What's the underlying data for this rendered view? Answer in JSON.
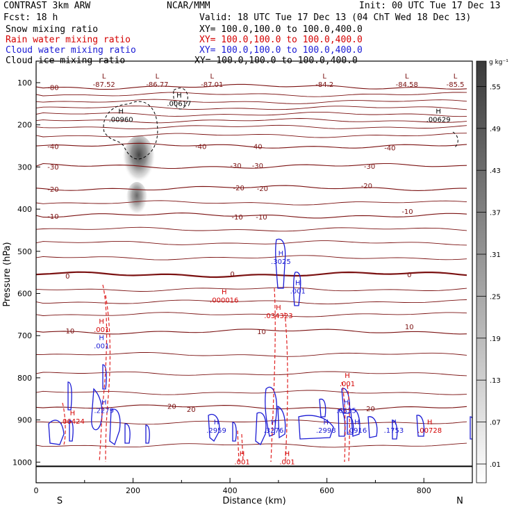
{
  "header": {
    "left_line1": "CONTRAST   3km ARW",
    "center_line1": "NCAR/MMM",
    "right_line1": "Init: 00 UTC Tue 17 Dec 13",
    "left_line2": "Fcst:    18 h",
    "right_line2": "Valid: 18 UTC Tue 17 Dec 13 (04 ChT Wed 18 Dec 13)",
    "fields": [
      {
        "label": "Snow mixing ratio",
        "xy": "XY= 100.0,100.0 to 100.0,400.0",
        "color": "#000000"
      },
      {
        "label": "Rain water mixing ratio",
        "xy": "XY= 100.0,100.0 to 100.0,400.0",
        "color": "#d40000"
      },
      {
        "label": "Cloud water mixing ratio",
        "xy": "XY= 100.0,100.0 to 100.0,400.0",
        "color": "#1a1ad4"
      },
      {
        "label": "Cloud ice mixing ratio",
        "xy": "XY= 100.0,100.0 to 100.0,400.0",
        "color": "#000000"
      }
    ]
  },
  "colorbar": {
    "unit": "g kg⁻¹",
    "levels": [
      ".01",
      ".07",
      ".13",
      ".19",
      ".25",
      ".31",
      ".37",
      ".43",
      ".49",
      ".55"
    ]
  },
  "chart_data": {
    "type": "contour cross-section",
    "xlabel": "Distance (km)",
    "ylabel": "Pressure (hPa)",
    "xlim": [
      0,
      900
    ],
    "ylim": [
      1040,
      50
    ],
    "x_ticks": [
      "0",
      "200",
      "400",
      "600",
      "800"
    ],
    "x_tick_values": [
      0,
      200,
      400,
      600,
      800
    ],
    "y_ticks": [
      "100",
      "200",
      "300",
      "400",
      "500",
      "600",
      "700",
      "800",
      "900",
      "1000"
    ],
    "y_tick_values": [
      100,
      200,
      300,
      400,
      500,
      600,
      700,
      800,
      900,
      1000
    ],
    "left_end": "S",
    "right_end": "N",
    "temperature_isotherms": [
      {
        "label": "-80",
        "p": 110
      },
      {
        "label": "-40",
        "p": 250
      },
      {
        "label": "-30",
        "p": 298
      },
      {
        "label": "-20",
        "p": 350
      },
      {
        "label": "-10",
        "p": 415
      },
      {
        "label": "0",
        "p": 555
      },
      {
        "label": "10",
        "p": 690
      },
      {
        "label": "20",
        "p": 870
      }
    ],
    "isotherm_labels": [
      {
        "text": "-80",
        "x": 35,
        "p": 111
      },
      {
        "text": "-40",
        "x": 35,
        "p": 251
      },
      {
        "text": "-40",
        "x": 340,
        "p": 251
      },
      {
        "text": "-40",
        "x": 455,
        "p": 251
      },
      {
        "text": "-40",
        "x": 730,
        "p": 254
      },
      {
        "text": "-30",
        "x": 35,
        "p": 299
      },
      {
        "text": "-30",
        "x": 412,
        "p": 296
      },
      {
        "text": "-30",
        "x": 457,
        "p": 296
      },
      {
        "text": "-30",
        "x": 688,
        "p": 298
      },
      {
        "text": "-20",
        "x": 35,
        "p": 352
      },
      {
        "text": "-20",
        "x": 418,
        "p": 349
      },
      {
        "text": "-20",
        "x": 467,
        "p": 350
      },
      {
        "text": "-20",
        "x": 682,
        "p": 344
      },
      {
        "text": "-10",
        "x": 35,
        "p": 416
      },
      {
        "text": "-10",
        "x": 415,
        "p": 418
      },
      {
        "text": "-10",
        "x": 465,
        "p": 418
      },
      {
        "text": "-10",
        "x": 766,
        "p": 405
      },
      {
        "text": "0",
        "x": 65,
        "p": 558
      },
      {
        "text": "0",
        "x": 405,
        "p": 553
      },
      {
        "text": "0",
        "x": 770,
        "p": 555
      },
      {
        "text": "10",
        "x": 70,
        "p": 688
      },
      {
        "text": "10",
        "x": 465,
        "p": 690
      },
      {
        "text": "10",
        "x": 770,
        "p": 678
      },
      {
        "text": "20",
        "x": 280,
        "p": 867
      },
      {
        "text": "20",
        "x": 320,
        "p": 874
      },
      {
        "text": "20",
        "x": 690,
        "p": 873
      }
    ],
    "low_labels": [
      {
        "text": "-87.52",
        "x": 140,
        "p": 100
      },
      {
        "text": "-86.77",
        "x": 250,
        "p": 100
      },
      {
        "text": "-87.01",
        "x": 363,
        "p": 100
      },
      {
        "text": "-84.2",
        "x": 595,
        "p": 100
      },
      {
        "text": "-84.58",
        "x": 765,
        "p": 100
      },
      {
        "text": "-85.5",
        "x": 865,
        "p": 100
      }
    ],
    "maxima_labels": [
      {
        "text": ".00960",
        "x": 175,
        "p": 190,
        "color": "#000000"
      },
      {
        "text": ".00617",
        "x": 295,
        "p": 152,
        "color": "#000000"
      },
      {
        "text": ".00629",
        "x": 830,
        "p": 190,
        "color": "#000000"
      },
      {
        "text": ".3025",
        "x": 505,
        "p": 527,
        "color": "#1a1ad4"
      },
      {
        "text": ".001",
        "x": 540,
        "p": 597,
        "color": "#1a1ad4"
      },
      {
        "text": ".000016",
        "x": 388,
        "p": 618,
        "color": "#d40000"
      },
      {
        "text": ".034323",
        "x": 500,
        "p": 655,
        "color": "#d40000"
      },
      {
        "text": ".001",
        "x": 135,
        "p": 688,
        "color": "#d40000"
      },
      {
        "text": ".001",
        "x": 135,
        "p": 727,
        "color": "#1a1ad4"
      },
      {
        "text": ".2279",
        "x": 140,
        "p": 880,
        "color": "#1a1ad4"
      },
      {
        "text": ".06424",
        "x": 75,
        "p": 906,
        "color": "#d40000"
      },
      {
        "text": ".2959",
        "x": 372,
        "p": 927,
        "color": "#1a1ad4"
      },
      {
        "text": ".3276",
        "x": 490,
        "p": 927,
        "color": "#1a1ad4"
      },
      {
        "text": ".2998",
        "x": 598,
        "p": 927,
        "color": "#1a1ad4"
      },
      {
        "text": ".0916",
        "x": 662,
        "p": 927,
        "color": "#1a1ad4"
      },
      {
        "text": ".6535",
        "x": 640,
        "p": 880,
        "color": "#1a1ad4"
      },
      {
        "text": ".001",
        "x": 642,
        "p": 817,
        "color": "#d40000"
      },
      {
        "text": ".1753",
        "x": 738,
        "p": 927,
        "color": "#1a1ad4"
      },
      {
        "text": ".00728",
        "x": 812,
        "p": 927,
        "color": "#d40000"
      },
      {
        "text": ".001",
        "x": 425,
        "p": 1002,
        "color": "#d40000"
      },
      {
        "text": ".001",
        "x": 518,
        "p": 1002,
        "color": "#d40000"
      }
    ],
    "snow_max_gkg": 0.55
  }
}
